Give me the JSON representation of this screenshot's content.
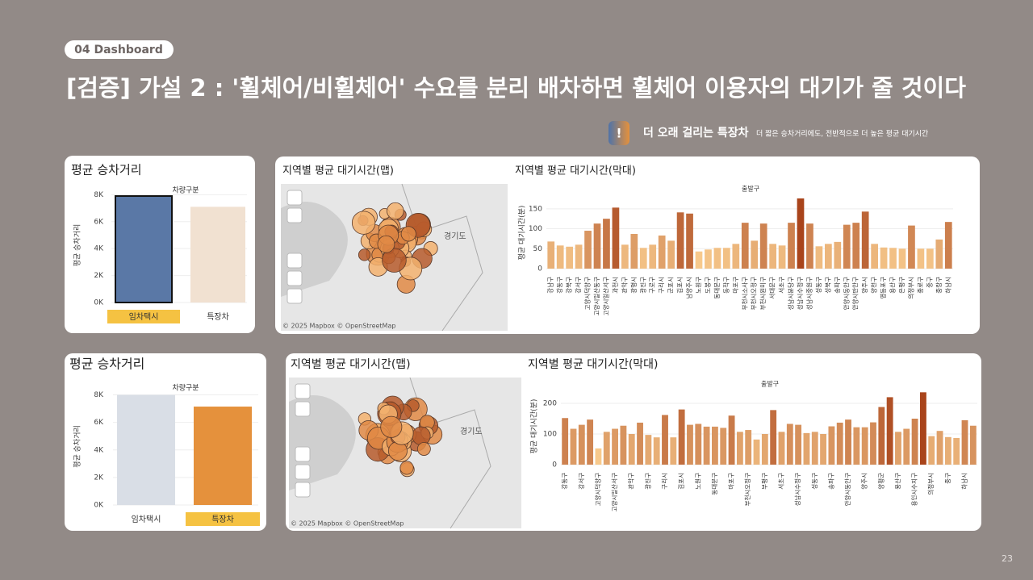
{
  "header": {
    "tag": "04 Dashboard",
    "title": "[검증] 가설 2 :  '휠체어/비휠체어' 수요를 분리 배차하면 휠체어 이용자의 대기가 줄 것이다"
  },
  "callout": {
    "icon": "!",
    "headline": "더 오래 걸리는 특장차",
    "detail": "더 짧은 승차거리에도, 전반적으로 더 높은 평균 대기시간"
  },
  "page_number": "23",
  "maps": [
    {
      "title": "지역별 평균 대기시간(맵)",
      "region_label": "경기도",
      "attribution": "© 2025 Mapbox  © OpenStreetMap"
    },
    {
      "title": "지역별 평균 대기시간(맵)",
      "region_label": "경기도",
      "attribution": "© 2025 Mapbox  © OpenStreetMap"
    }
  ],
  "chart_data": [
    {
      "type": "bar",
      "title": "평균 승차거리",
      "x_header": "차량구분",
      "y_label": "평균 승차거리",
      "categories": [
        "임차택시",
        "특장차"
      ],
      "values": [
        7900,
        7100
      ],
      "colors": [
        "#5a78a6",
        "#f1e1d1"
      ],
      "highlight": 0,
      "outlined": 0,
      "ylim": [
        0,
        8500
      ],
      "yticks": [
        {
          "value": 0,
          "label": "0K"
        },
        {
          "value": 2000,
          "label": "2K"
        },
        {
          "value": 4000,
          "label": "4K"
        },
        {
          "value": 6000,
          "label": "6K"
        },
        {
          "value": 8000,
          "label": "8K"
        }
      ],
      "grid": true
    },
    {
      "type": "column-scale",
      "title": "지역별 평균 대기시간(막대)",
      "x_header": "출발구",
      "y_label": "평균 대기시간(분)",
      "categories": [
        "강남구",
        "강동구",
        "강북구",
        "강서구",
        "고양시덕양구",
        "고양시일산동구",
        "고양시일산서구",
        "과천시",
        "관악구",
        "광명시",
        "광진구",
        "구로구",
        "구리시",
        "군포시",
        "김포시",
        "남양주시",
        "노원구",
        "도봉구",
        "동대문구",
        "동작구",
        "마포구",
        "부천시소사구",
        "부천시오정구",
        "부천시원미구",
        "서대문구",
        "서초구",
        "성남시분당구",
        "성남시수정구",
        "성남시중원구",
        "성동구",
        "성북구",
        "송파구",
        "안양시동안구",
        "안양시만안구",
        "양주시",
        "양천구",
        "영등포구",
        "용산구",
        "은평구",
        "의정부시",
        "종로구",
        "중구",
        "중랑구",
        "하남시"
      ],
      "values": [
        68,
        58,
        55,
        60,
        95,
        113,
        125,
        153,
        60,
        87,
        52,
        60,
        83,
        70,
        141,
        138,
        43,
        48,
        52,
        52,
        62,
        115,
        70,
        113,
        62,
        58,
        115,
        176,
        113,
        56,
        62,
        67,
        110,
        115,
        143,
        62,
        53,
        52,
        50,
        108,
        50,
        50,
        73,
        117
      ],
      "color_scale": [
        "#f7c98c",
        "#a9441b"
      ],
      "ylim": [
        0,
        180
      ],
      "yticks": [
        0,
        50,
        100,
        150
      ],
      "grid": true
    },
    {
      "type": "bar",
      "title": "평균 승차거리",
      "x_header": "차량구분",
      "y_label": "평균 승차거리",
      "categories": [
        "임차택시",
        "특장차"
      ],
      "values": [
        8000,
        7150
      ],
      "colors": [
        "#d9dee6",
        "#e5913c"
      ],
      "highlight": 1,
      "ylim": [
        0,
        8500
      ],
      "yticks": [
        {
          "value": 0,
          "label": "0K"
        },
        {
          "value": 2000,
          "label": "2K"
        },
        {
          "value": 4000,
          "label": "4K"
        },
        {
          "value": 6000,
          "label": "6K"
        },
        {
          "value": 8000,
          "label": "8K"
        }
      ],
      "grid": true
    },
    {
      "type": "column-scale",
      "title": "지역별 평균 대기시간(막대)",
      "x_header": "출발구",
      "y_label": "평균 대기시간(분)",
      "categories": [
        "강동구",
        null,
        "강서구",
        null,
        "고양시덕양구",
        null,
        "고양시일산서구",
        null,
        "관악구",
        null,
        "광진구",
        null,
        "구리시",
        null,
        "김포시",
        null,
        "노원구",
        null,
        "동대문구",
        null,
        "마포구",
        null,
        "부천시오정구",
        null,
        "부평구",
        null,
        "서초구",
        null,
        "성남시수정구",
        null,
        "성동구",
        null,
        "송파구",
        null,
        "안양시동안구",
        null,
        "양주시",
        null,
        "양평군",
        null,
        "용산구",
        null,
        "용인시수지구",
        null,
        "의정부시",
        null,
        "중구",
        null,
        "하남시",
        null
      ],
      "values": [
        152,
        117,
        130,
        147,
        53,
        107,
        117,
        127,
        100,
        137,
        97,
        89,
        162,
        89,
        180,
        130,
        133,
        124,
        124,
        120,
        160,
        107,
        113,
        82,
        100,
        178,
        107,
        133,
        130,
        103,
        107,
        100,
        125,
        137,
        147,
        122,
        122,
        138,
        188,
        220,
        107,
        117,
        150,
        236,
        93,
        110,
        90,
        87,
        145,
        127
      ],
      "color_scale": [
        "#f7c98c",
        "#a9441b"
      ],
      "ylim": [
        0,
        250
      ],
      "yticks": [
        0,
        100,
        200
      ],
      "grid": true
    }
  ]
}
